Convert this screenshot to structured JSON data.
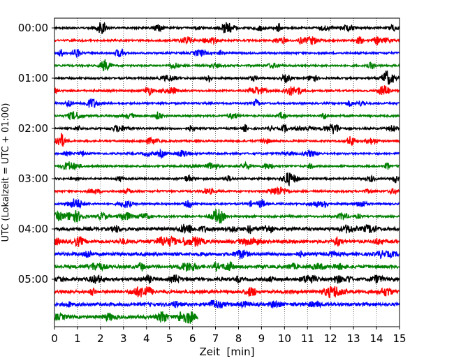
{
  "chart_data": {
    "type": "line",
    "title": "",
    "xlabel": "Zeit  [min]",
    "ylabel": "UTC (Lokalzeit = UTC + 01:00)",
    "xlim": [
      0,
      15
    ],
    "xticks": [
      0,
      1,
      2,
      3,
      4,
      5,
      6,
      7,
      8,
      9,
      10,
      11,
      12,
      13,
      14,
      15
    ],
    "vertical_grid": "dotted, at each minute",
    "yticks": [
      "00:00",
      "01:00",
      "02:00",
      "03:00",
      "04:00",
      "05:00"
    ],
    "series_colors": [
      "#000000",
      "#ff0000",
      "#0000ff",
      "#008000"
    ],
    "traces": [
      {
        "start": "00:00",
        "color": "#000000",
        "x_end": 15
      },
      {
        "start": "00:15",
        "color": "#ff0000",
        "x_end": 15
      },
      {
        "start": "00:30",
        "color": "#0000ff",
        "x_end": 15
      },
      {
        "start": "00:45",
        "color": "#008000",
        "x_end": 15
      },
      {
        "start": "01:00",
        "color": "#000000",
        "x_end": 15
      },
      {
        "start": "01:15",
        "color": "#ff0000",
        "x_end": 15
      },
      {
        "start": "01:30",
        "color": "#0000ff",
        "x_end": 15
      },
      {
        "start": "01:45",
        "color": "#008000",
        "x_end": 15
      },
      {
        "start": "02:00",
        "color": "#000000",
        "x_end": 15
      },
      {
        "start": "02:15",
        "color": "#ff0000",
        "x_end": 15
      },
      {
        "start": "02:30",
        "color": "#0000ff",
        "x_end": 15
      },
      {
        "start": "02:45",
        "color": "#008000",
        "x_end": 15
      },
      {
        "start": "03:00",
        "color": "#000000",
        "x_end": 15
      },
      {
        "start": "03:15",
        "color": "#ff0000",
        "x_end": 15
      },
      {
        "start": "03:30",
        "color": "#0000ff",
        "x_end": 15
      },
      {
        "start": "03:45",
        "color": "#008000",
        "x_end": 15
      },
      {
        "start": "04:00",
        "color": "#000000",
        "x_end": 15
      },
      {
        "start": "04:15",
        "color": "#ff0000",
        "x_end": 15
      },
      {
        "start": "04:30",
        "color": "#0000ff",
        "x_end": 15
      },
      {
        "start": "04:45",
        "color": "#008000",
        "x_end": 15
      },
      {
        "start": "05:00",
        "color": "#000000",
        "x_end": 15
      },
      {
        "start": "05:15",
        "color": "#ff0000",
        "x_end": 15
      },
      {
        "start": "05:30",
        "color": "#0000ff",
        "x_end": 15
      },
      {
        "start": "05:45",
        "color": "#008000",
        "x_end": 6.25
      }
    ]
  }
}
